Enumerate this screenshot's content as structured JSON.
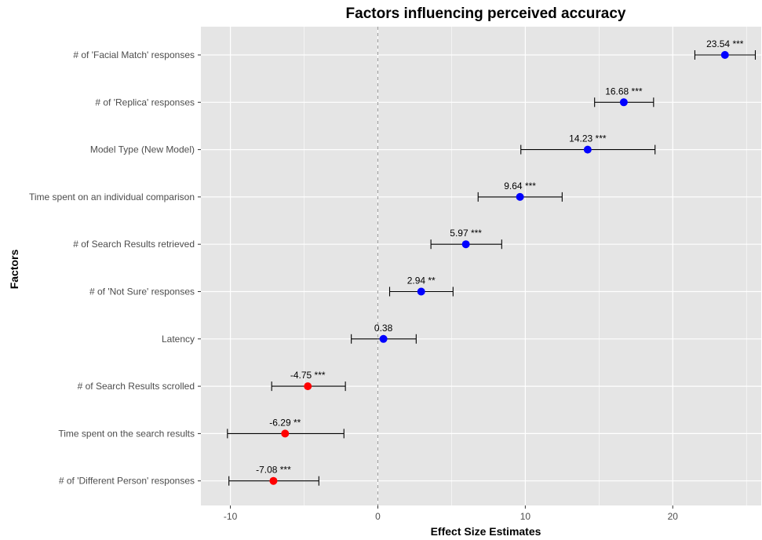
{
  "chart_data": {
    "type": "scatter",
    "title": "Factors influencing perceived accuracy",
    "xlabel": "Effect Size Estimates",
    "ylabel": "Factors",
    "xlim": [
      -12,
      26
    ],
    "x_ticks": [
      -10,
      0,
      10,
      20
    ],
    "x_tick_labels": [
      "-10",
      "0",
      "10",
      "20"
    ],
    "reference_line_x": 0,
    "grid": true,
    "colors": {
      "panel_background": "#e5e5e5",
      "grid": "#ffffff",
      "positive": "#0000ff",
      "negative": "#ff0000",
      "error_bar": "#000000",
      "reference_line": "#a0a0a0"
    },
    "factors": [
      {
        "label": "# of 'Facial Match' responses",
        "estimate": 23.54,
        "lower": 21.5,
        "upper": 25.6,
        "annotation": "23.54 ***",
        "direction": "positive"
      },
      {
        "label": "# of 'Replica' responses",
        "estimate": 16.68,
        "lower": 14.7,
        "upper": 18.7,
        "annotation": "16.68 ***",
        "direction": "positive"
      },
      {
        "label": "Model Type (New Model)",
        "estimate": 14.23,
        "lower": 9.7,
        "upper": 18.8,
        "annotation": "14.23 ***",
        "direction": "positive"
      },
      {
        "label": "Time spent on an individual comparison",
        "estimate": 9.64,
        "lower": 6.8,
        "upper": 12.5,
        "annotation": "9.64 ***",
        "direction": "positive"
      },
      {
        "label": "# of Search Results retrieved",
        "estimate": 5.97,
        "lower": 3.6,
        "upper": 8.4,
        "annotation": "5.97 ***",
        "direction": "positive"
      },
      {
        "label": "# of 'Not Sure' responses",
        "estimate": 2.94,
        "lower": 0.8,
        "upper": 5.1,
        "annotation": "2.94 **",
        "direction": "positive"
      },
      {
        "label": "Latency",
        "estimate": 0.38,
        "lower": -1.8,
        "upper": 2.6,
        "annotation": "0.38",
        "direction": "positive"
      },
      {
        "label": "# of Search Results scrolled",
        "estimate": -4.75,
        "lower": -7.2,
        "upper": -2.2,
        "annotation": "-4.75 ***",
        "direction": "negative"
      },
      {
        "label": "Time spent on the search results",
        "estimate": -6.29,
        "lower": -10.2,
        "upper": -2.3,
        "annotation": "-6.29 **",
        "direction": "negative"
      },
      {
        "label": "# of 'Different Person' responses",
        "estimate": -7.08,
        "lower": -10.1,
        "upper": -4.0,
        "annotation": "-7.08 ***",
        "direction": "negative"
      }
    ]
  }
}
